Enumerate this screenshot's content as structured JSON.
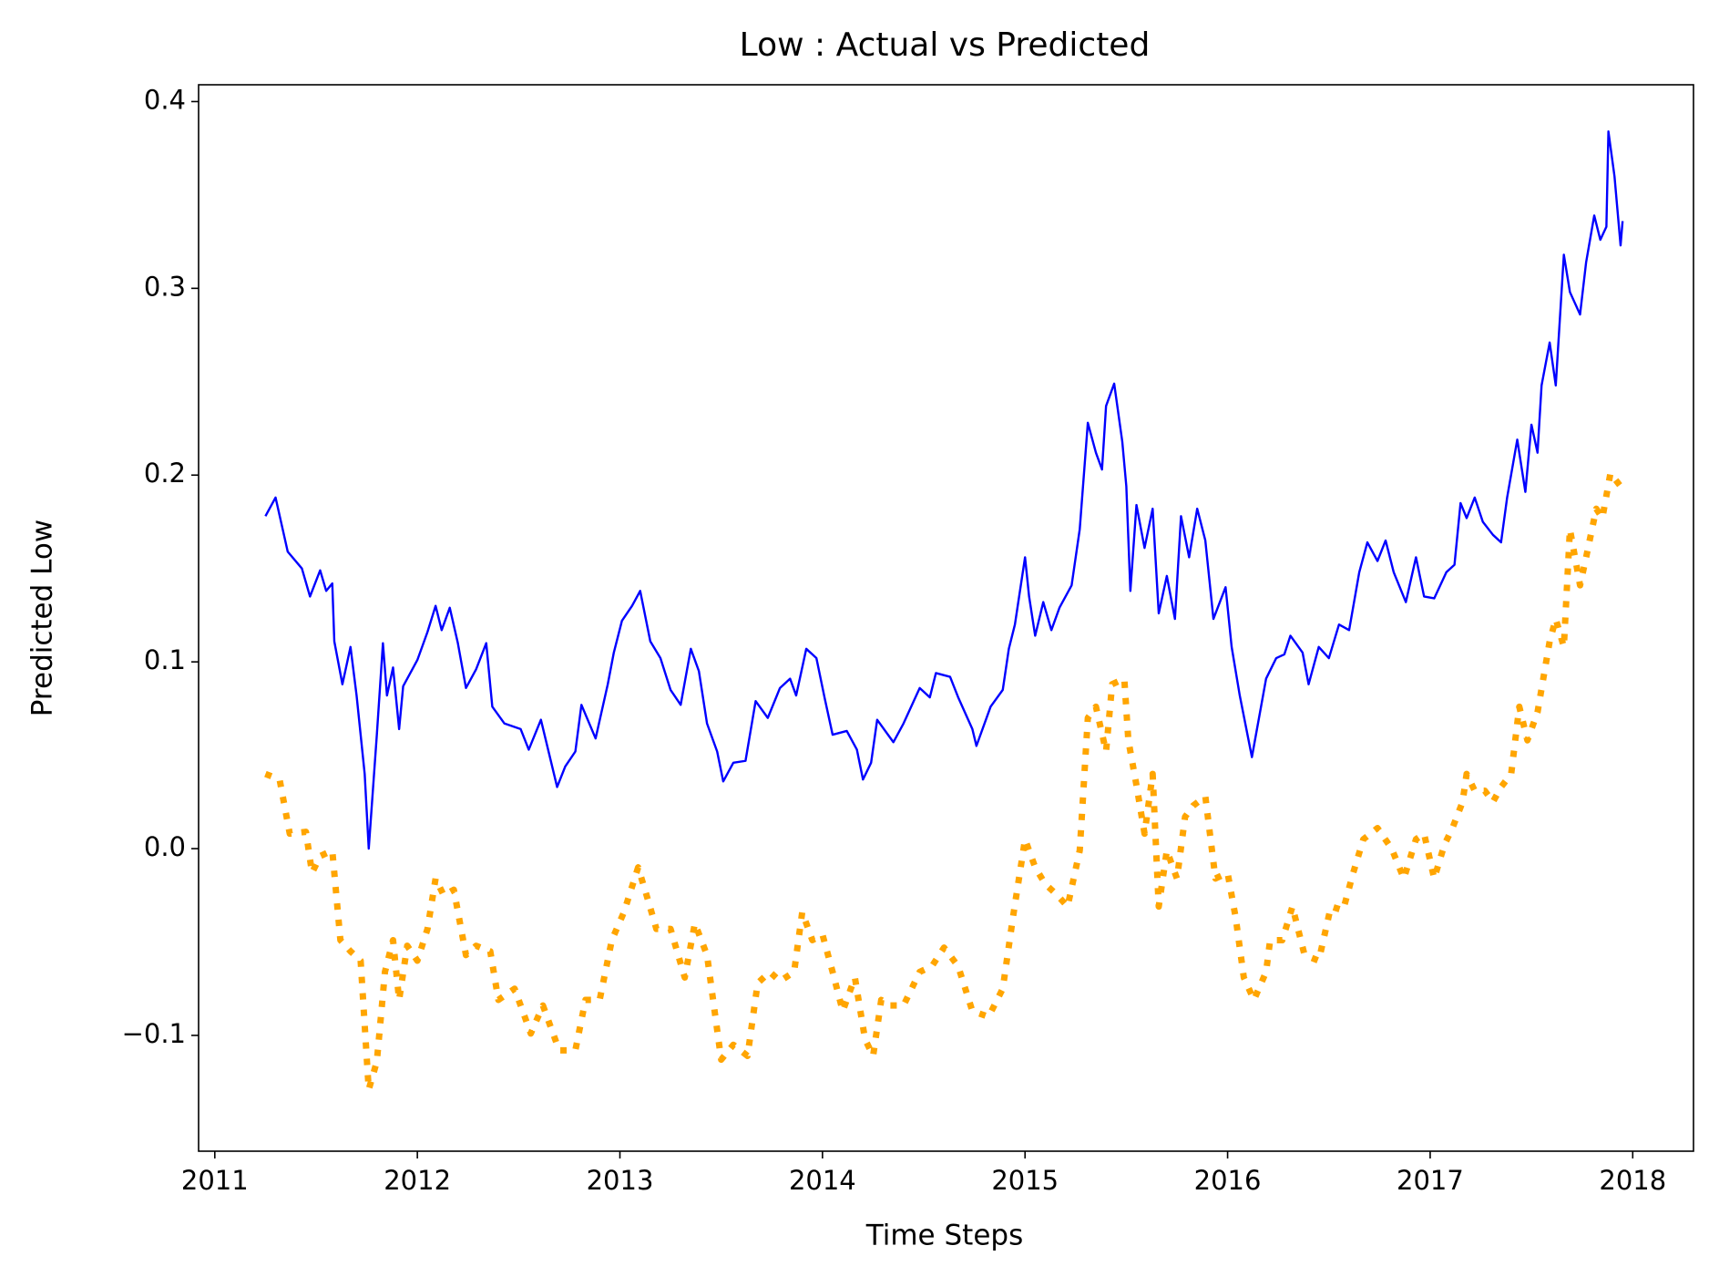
{
  "chart_data": {
    "type": "line",
    "title": "Low : Actual vs Predicted",
    "x_label": "Time Steps",
    "y_label": "Predicted Low",
    "xlim": [
      2010.92,
      2018.3
    ],
    "xticks": [
      2011,
      2012,
      2013,
      2014,
      2015,
      2016,
      2017,
      2018
    ],
    "ylim": [
      -0.162,
      0.409
    ],
    "yticks": [
      {
        "value": -0.1,
        "label": "−0.1"
      },
      {
        "value": 0,
        "label": "0.0"
      },
      0.1,
      0.2,
      0.3,
      0.4
    ],
    "grid": false,
    "series": [
      {
        "color": "blue",
        "style": "solid",
        "x": [
          2011.25,
          2011.3,
          2011.36,
          2011.43,
          2011.47,
          2011.52,
          2011.55,
          2011.58,
          2011.59,
          2011.63,
          2011.67,
          2011.7,
          2011.74,
          2011.76,
          2011.8,
          2011.83,
          2011.85,
          2011.88,
          2011.91,
          2011.93,
          2011.97,
          2012.0,
          2012.05,
          2012.09,
          2012.12,
          2012.16,
          2012.2,
          2012.24,
          2012.29,
          2012.34,
          2012.37,
          2012.43,
          2012.51,
          2012.55,
          2012.61,
          2012.69,
          2012.73,
          2012.78,
          2012.81,
          2012.88,
          2012.94,
          2012.97,
          2013.01,
          2013.06,
          2013.1,
          2013.15,
          2013.2,
          2013.25,
          2013.3,
          2013.35,
          2013.39,
          2013.43,
          2013.48,
          2013.51,
          2013.56,
          2013.62,
          2013.67,
          2013.73,
          2013.79,
          2013.84,
          2013.87,
          2013.92,
          2013.97,
          2014.01,
          2014.05,
          2014.12,
          2014.17,
          2014.2,
          2014.24,
          2014.27,
          2014.35,
          2014.4,
          2014.48,
          2014.53,
          2014.56,
          2014.63,
          2014.67,
          2014.74,
          2014.76,
          2014.83,
          2014.89,
          2014.92,
          2014.95,
          2015.0,
          2015.02,
          2015.05,
          2015.09,
          2015.13,
          2015.17,
          2015.23,
          2015.27,
          2015.31,
          2015.35,
          2015.38,
          2015.4,
          2015.44,
          2015.48,
          2015.5,
          2015.52,
          2015.55,
          2015.59,
          2015.63,
          2015.66,
          2015.7,
          2015.74,
          2015.77,
          2015.81,
          2015.85,
          2015.89,
          2015.93,
          2015.99,
          2016.02,
          2016.06,
          2016.12,
          2016.15,
          2016.19,
          2016.24,
          2016.28,
          2016.31,
          2016.37,
          2016.4,
          2016.45,
          2016.5,
          2016.55,
          2016.6,
          2016.65,
          2016.69,
          2016.74,
          2016.78,
          2016.82,
          2016.88,
          2016.93,
          2016.97,
          2017.02,
          2017.08,
          2017.12,
          2017.15,
          2017.18,
          2017.22,
          2017.26,
          2017.31,
          2017.35,
          2017.38,
          2017.43,
          2017.47,
          2017.5,
          2017.53,
          2017.55,
          2017.59,
          2017.62,
          2017.66,
          2017.69,
          2017.74,
          2017.77,
          2017.81,
          2017.84,
          2017.87,
          2017.88,
          2017.91,
          2017.94,
          2017.95
        ],
        "values": [
          0.178,
          0.188,
          0.159,
          0.15,
          0.135,
          0.149,
          0.138,
          0.142,
          0.111,
          0.088,
          0.108,
          0.082,
          0.04,
          0.0,
          0.061,
          0.11,
          0.082,
          0.097,
          0.064,
          0.087,
          0.095,
          0.101,
          0.116,
          0.13,
          0.117,
          0.129,
          0.11,
          0.086,
          0.096,
          0.11,
          0.076,
          0.067,
          0.064,
          0.053,
          0.069,
          0.033,
          0.044,
          0.052,
          0.077,
          0.059,
          0.088,
          0.105,
          0.122,
          0.13,
          0.138,
          0.111,
          0.102,
          0.085,
          0.077,
          0.107,
          0.095,
          0.067,
          0.052,
          0.036,
          0.046,
          0.047,
          0.079,
          0.07,
          0.086,
          0.091,
          0.082,
          0.107,
          0.102,
          0.081,
          0.061,
          0.063,
          0.053,
          0.037,
          0.046,
          0.069,
          0.057,
          0.067,
          0.086,
          0.081,
          0.094,
          0.092,
          0.081,
          0.064,
          0.055,
          0.076,
          0.085,
          0.107,
          0.12,
          0.156,
          0.135,
          0.114,
          0.132,
          0.117,
          0.129,
          0.141,
          0.171,
          0.228,
          0.212,
          0.203,
          0.237,
          0.249,
          0.218,
          0.194,
          0.138,
          0.184,
          0.161,
          0.182,
          0.126,
          0.146,
          0.123,
          0.178,
          0.156,
          0.182,
          0.165,
          0.123,
          0.14,
          0.108,
          0.082,
          0.049,
          0.067,
          0.091,
          0.102,
          0.104,
          0.114,
          0.105,
          0.088,
          0.108,
          0.102,
          0.12,
          0.117,
          0.148,
          0.164,
          0.154,
          0.165,
          0.148,
          0.132,
          0.156,
          0.135,
          0.134,
          0.148,
          0.152,
          0.185,
          0.177,
          0.188,
          0.175,
          0.168,
          0.164,
          0.188,
          0.219,
          0.191,
          0.227,
          0.212,
          0.248,
          0.271,
          0.248,
          0.318,
          0.298,
          0.286,
          0.314,
          0.339,
          0.326,
          0.333,
          0.384,
          0.36,
          0.323,
          0.336
        ]
      },
      {
        "color": "orange",
        "style": "dotted",
        "x": [
          2011.25,
          2011.32,
          2011.37,
          2011.45,
          2011.48,
          2011.52,
          2011.58,
          2011.62,
          2011.67,
          2011.72,
          2011.76,
          2011.8,
          2011.84,
          2011.88,
          2011.91,
          2011.95,
          2012.0,
          2012.05,
          2012.09,
          2012.13,
          2012.18,
          2012.24,
          2012.29,
          2012.36,
          2012.4,
          2012.48,
          2012.56,
          2012.62,
          2012.7,
          2012.78,
          2012.83,
          2012.9,
          2012.96,
          2013.02,
          2013.09,
          2013.14,
          2013.18,
          2013.25,
          2013.32,
          2013.37,
          2013.43,
          2013.46,
          2013.5,
          2013.56,
          2013.63,
          2013.68,
          2013.74,
          2013.79,
          2013.86,
          2013.9,
          2013.95,
          2014.0,
          2014.05,
          2014.1,
          2014.16,
          2014.21,
          2014.25,
          2014.29,
          2014.33,
          2014.4,
          2014.48,
          2014.54,
          2014.6,
          2014.67,
          2014.74,
          2014.82,
          2014.89,
          2014.94,
          2015.0,
          2015.05,
          2015.1,
          2015.16,
          2015.21,
          2015.27,
          2015.31,
          2015.35,
          2015.4,
          2015.43,
          2015.49,
          2015.51,
          2015.55,
          2015.59,
          2015.63,
          2015.66,
          2015.7,
          2015.75,
          2015.79,
          2015.83,
          2015.89,
          2015.94,
          2016.0,
          2016.04,
          2016.08,
          2016.13,
          2016.19,
          2016.21,
          2016.27,
          2016.32,
          2016.38,
          2016.45,
          2016.51,
          2016.57,
          2016.62,
          2016.67,
          2016.74,
          2016.81,
          2016.87,
          2016.93,
          2016.97,
          2017.02,
          2017.07,
          2017.11,
          2017.16,
          2017.18,
          2017.22,
          2017.27,
          2017.31,
          2017.35,
          2017.4,
          2017.44,
          2017.48,
          2017.53,
          2017.59,
          2017.62,
          2017.66,
          2017.69,
          2017.74,
          2017.77,
          2017.82,
          2017.85,
          2017.89,
          2017.94
        ],
        "values": [
          0.04,
          0.037,
          0.008,
          0.009,
          -0.013,
          -0.004,
          -0.001,
          -0.049,
          -0.055,
          -0.06,
          -0.129,
          -0.114,
          -0.066,
          -0.049,
          -0.081,
          -0.052,
          -0.06,
          -0.043,
          -0.016,
          -0.025,
          -0.022,
          -0.057,
          -0.052,
          -0.055,
          -0.081,
          -0.075,
          -0.099,
          -0.084,
          -0.108,
          -0.108,
          -0.081,
          -0.081,
          -0.049,
          -0.034,
          -0.01,
          -0.028,
          -0.043,
          -0.043,
          -0.069,
          -0.04,
          -0.057,
          -0.081,
          -0.113,
          -0.105,
          -0.111,
          -0.072,
          -0.066,
          -0.071,
          -0.066,
          -0.034,
          -0.049,
          -0.046,
          -0.066,
          -0.087,
          -0.069,
          -0.102,
          -0.111,
          -0.081,
          -0.084,
          -0.084,
          -0.066,
          -0.063,
          -0.053,
          -0.063,
          -0.087,
          -0.09,
          -0.075,
          -0.037,
          0.005,
          -0.01,
          -0.019,
          -0.025,
          -0.031,
          -0.001,
          0.07,
          0.076,
          0.052,
          0.088,
          0.091,
          0.058,
          0.034,
          0.008,
          0.04,
          -0.031,
          -0.001,
          -0.016,
          0.017,
          0.023,
          0.028,
          -0.016,
          -0.013,
          -0.037,
          -0.069,
          -0.081,
          -0.066,
          -0.049,
          -0.049,
          -0.031,
          -0.057,
          -0.06,
          -0.031,
          -0.033,
          -0.013,
          0.005,
          0.011,
          0.0,
          -0.016,
          0.005,
          0.008,
          -0.016,
          0.002,
          0.011,
          0.025,
          0.04,
          0.031,
          0.031,
          0.025,
          0.033,
          0.04,
          0.076,
          0.058,
          0.073,
          0.111,
          0.123,
          0.108,
          0.171,
          0.141,
          0.156,
          0.182,
          0.177,
          0.201,
          0.194
        ]
      }
    ]
  }
}
